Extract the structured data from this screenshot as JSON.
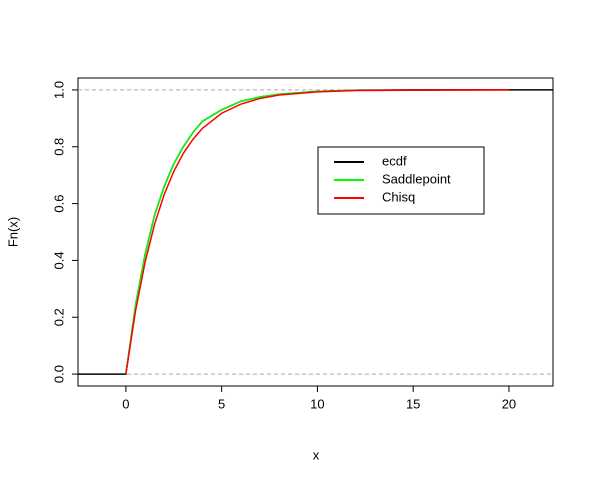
{
  "chart_data": {
    "type": "line",
    "xlabel": "x",
    "ylabel": "Fn(x)",
    "xlim": [
      -2.5,
      22.3
    ],
    "ylim": [
      -0.042,
      1.042
    ],
    "xticks": [
      0,
      5,
      10,
      15,
      20
    ],
    "yticks": [
      {
        "value": 0,
        "label": "0.0"
      },
      0.2,
      0.4,
      0.6,
      0.8,
      {
        "value": 1,
        "label": "1.0"
      }
    ],
    "hlines": [
      0,
      1
    ],
    "legend": "upper right",
    "series": [
      {
        "name": "ecdf",
        "color": "#000000",
        "x": [
          -2.5,
          0,
          0.5,
          1,
          1.5,
          2,
          2.5,
          3,
          3.5,
          4,
          5,
          6,
          7,
          8,
          10,
          12,
          15,
          20,
          22.3
        ],
        "values": [
          0,
          0,
          0.24,
          0.42,
          0.56,
          0.66,
          0.74,
          0.8,
          0.85,
          0.89,
          0.93,
          0.96,
          0.975,
          0.985,
          0.995,
          0.999,
          1,
          1,
          1
        ]
      },
      {
        "name": "Saddlepoint",
        "color": "#00ff00",
        "x": [
          0,
          0.5,
          1,
          1.5,
          2,
          2.5,
          3,
          3.5,
          4,
          5,
          6,
          7,
          8,
          10,
          12
        ],
        "values": [
          0,
          0.24,
          0.42,
          0.56,
          0.66,
          0.74,
          0.8,
          0.85,
          0.89,
          0.93,
          0.96,
          0.975,
          0.985,
          0.995,
          0.999
        ]
      },
      {
        "name": "Chisq",
        "color": "#ff0000",
        "x": [
          0,
          0.5,
          1,
          1.5,
          2,
          2.5,
          3,
          3.5,
          4,
          5,
          6,
          7,
          8,
          10,
          12,
          15,
          20
        ],
        "values": [
          0,
          0.221,
          0.393,
          0.528,
          0.632,
          0.713,
          0.777,
          0.826,
          0.865,
          0.918,
          0.95,
          0.97,
          0.982,
          0.993,
          0.998,
          0.999,
          1
        ]
      }
    ]
  }
}
